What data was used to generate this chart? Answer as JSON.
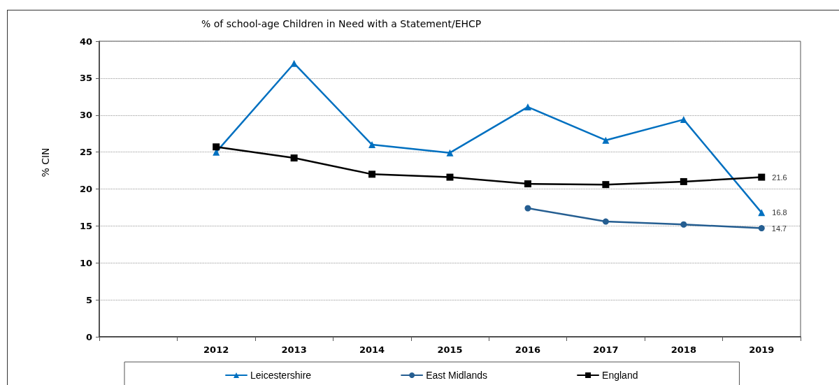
{
  "chart_data": {
    "type": "line",
    "title": "% of school-age Children in Need with a Statement/EHCP",
    "ylabel": "% CIN",
    "categories": [
      null,
      "2012",
      "2013",
      "2014",
      "2015",
      "2016",
      "2017",
      "2018",
      "2019"
    ],
    "series": [
      {
        "name": "Leicestershire",
        "color": "#0070c0",
        "marker": "triangle",
        "values": [
          null,
          25.0,
          37.0,
          26.0,
          24.9,
          31.1,
          26.6,
          29.4,
          16.8
        ],
        "value_labels": [
          null,
          null,
          null,
          null,
          null,
          null,
          null,
          null,
          "16.8"
        ]
      },
      {
        "name": "East Midlands",
        "color": "#255e91",
        "marker": "circle",
        "values": [
          null,
          null,
          null,
          null,
          null,
          17.4,
          15.6,
          15.2,
          14.7
        ],
        "value_labels": [
          null,
          null,
          null,
          null,
          null,
          null,
          null,
          null,
          "14.7"
        ]
      },
      {
        "name": "England",
        "color": "#000000",
        "marker": "square",
        "values": [
          null,
          25.7,
          24.2,
          22.0,
          21.6,
          20.7,
          20.6,
          21.0,
          21.6
        ],
        "value_labels": [
          null,
          null,
          null,
          null,
          null,
          null,
          null,
          null,
          "21.6"
        ]
      }
    ],
    "ylim": [
      0,
      40
    ],
    "yticks": [
      0,
      5,
      10,
      15,
      20,
      25,
      30,
      35,
      40
    ],
    "grid": "y",
    "legend": "bottom",
    "line_style": "solid"
  }
}
